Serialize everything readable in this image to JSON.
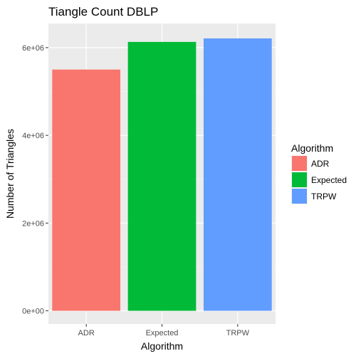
{
  "chart_data": {
    "type": "bar",
    "title": "Tiangle Count DBLP",
    "xlabel": "Algorithm",
    "ylabel": "Number of Triangles",
    "categories": [
      "ADR",
      "Expected",
      "TRPW"
    ],
    "values": [
      5500000,
      6130000,
      6210000
    ],
    "colors": [
      "#F8766D",
      "#00BA38",
      "#619CFF"
    ],
    "ylim": [
      -300000,
      6550000
    ],
    "yticks": [
      0,
      2000000,
      4000000,
      6000000
    ],
    "ytick_labels": [
      "0e+00",
      "2e+06",
      "4e+06",
      "6e+06"
    ],
    "grid": true,
    "panel_background": "#EBEBEB",
    "legend": {
      "title": "Algorithm",
      "position": "right",
      "entries": [
        "ADR",
        "Expected",
        "TRPW"
      ]
    }
  }
}
